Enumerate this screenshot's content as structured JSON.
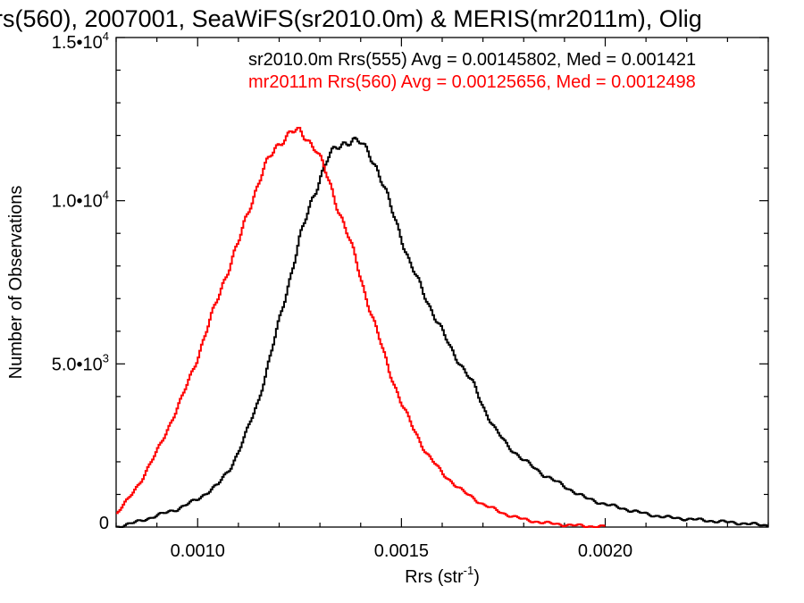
{
  "chart_data": {
    "type": "line",
    "title": "rs(560), 2007001, SeaWiFS(sr2010.0m) & MERIS(mr2011m), Olig",
    "xlabel": "Rrs (str",
    "xlabel_sup": "-1",
    "xlabel_close": ")",
    "ylabel": "Number of Observations",
    "xlim": [
      0.0008,
      0.0024
    ],
    "ylim": [
      0,
      15000
    ],
    "grid": false,
    "x_ticks": [
      {
        "value": 0.001,
        "label": "0.0010"
      },
      {
        "value": 0.0015,
        "label": "0.0015"
      },
      {
        "value": 0.002,
        "label": "0.0020"
      }
    ],
    "y_ticks": [
      {
        "value": 0,
        "mant": "0",
        "exp": ""
      },
      {
        "value": 5000,
        "mant": "5.0•10",
        "exp": "3"
      },
      {
        "value": 10000,
        "mant": "1.0•10",
        "exp": "4"
      },
      {
        "value": 15000,
        "mant": "1.5•10",
        "exp": "4"
      }
    ],
    "annotations": [
      {
        "text": "sr2010.0m Rrs(555) Avg = 0.00145802, Med = 0.001421",
        "color": "#000000"
      },
      {
        "text": "mr2011m Rrs(560) Avg = 0.00125656, Med = 0.0012498",
        "color": "#ff0000"
      }
    ],
    "series": [
      {
        "color": "#000000",
        "x": [
          0.0008,
          0.00085,
          0.0009,
          0.00095,
          0.001,
          0.00105,
          0.00108,
          0.0011,
          0.00112,
          0.00115,
          0.00118,
          0.0012,
          0.00122,
          0.00125,
          0.00128,
          0.0013,
          0.00132,
          0.00134,
          0.00136,
          0.00138,
          0.0014,
          0.00142,
          0.00144,
          0.00146,
          0.00148,
          0.0015,
          0.00152,
          0.00155,
          0.00158,
          0.0016,
          0.00162,
          0.00165,
          0.00168,
          0.0017,
          0.00173,
          0.00176,
          0.0018,
          0.00185,
          0.0019,
          0.00195,
          0.002,
          0.00205,
          0.0021,
          0.00215,
          0.0022,
          0.00225,
          0.0023,
          0.00235,
          0.0024
        ],
        "y": [
          0,
          150,
          350,
          550,
          850,
          1300,
          1800,
          2300,
          2900,
          3900,
          5300,
          6300,
          7300,
          8800,
          10000,
          10700,
          11300,
          11600,
          11800,
          11850,
          11750,
          11500,
          11000,
          10300,
          9600,
          8900,
          8100,
          7300,
          6500,
          6000,
          5500,
          4900,
          4300,
          3700,
          3000,
          2500,
          2050,
          1600,
          1250,
          900,
          700,
          550,
          400,
          300,
          250,
          200,
          150,
          100,
          50
        ]
      },
      {
        "color": "#ff0000",
        "x": [
          0.0008,
          0.00083,
          0.00086,
          0.0009,
          0.00093,
          0.00096,
          0.001,
          0.00103,
          0.00106,
          0.0011,
          0.00113,
          0.00116,
          0.00119,
          0.00121,
          0.00123,
          0.00125,
          0.00127,
          0.00129,
          0.00131,
          0.00133,
          0.00135,
          0.00137,
          0.00139,
          0.00141,
          0.00143,
          0.00145,
          0.00147,
          0.0015,
          0.00153,
          0.00156,
          0.0016,
          0.00165,
          0.0017,
          0.00175,
          0.0018,
          0.00185,
          0.0019,
          0.00195,
          0.002
        ],
        "y": [
          400,
          850,
          1400,
          2300,
          3100,
          3900,
          5200,
          6300,
          7400,
          8700,
          9900,
          10900,
          11600,
          11900,
          12100,
          12100,
          11900,
          11600,
          11000,
          10300,
          9600,
          8900,
          8100,
          7200,
          6400,
          5600,
          4800,
          3800,
          3000,
          2300,
          1650,
          1100,
          700,
          420,
          230,
          130,
          70,
          30,
          10
        ]
      }
    ]
  }
}
